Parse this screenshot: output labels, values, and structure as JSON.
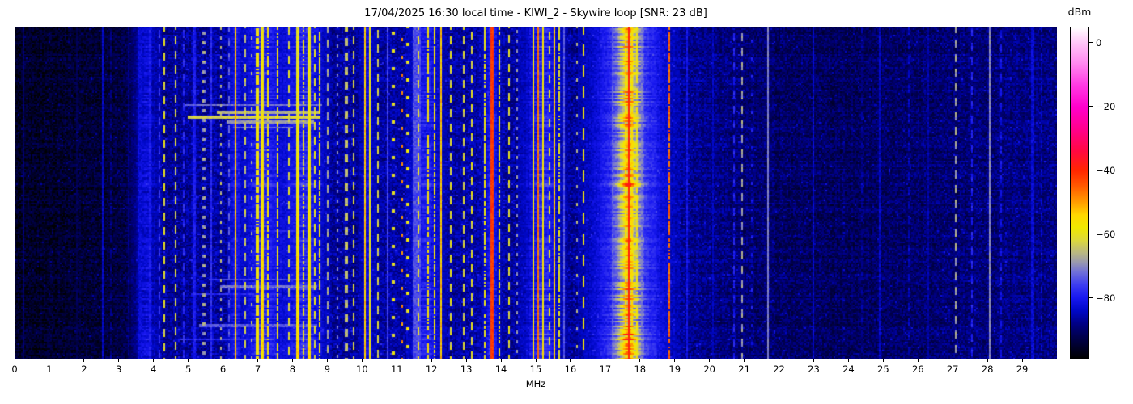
{
  "chart_data": {
    "type": "heatmap",
    "subtype": "radio-spectrum-waterfall",
    "title": "17/04/2025 16:30 local time - KIWI_2 - Skywire loop [SNR: 23 dB]",
    "xlabel": "MHz",
    "x_range": [
      0,
      30
    ],
    "x_ticks": [
      0,
      1,
      2,
      3,
      4,
      5,
      6,
      7,
      8,
      9,
      10,
      11,
      12,
      13,
      14,
      15,
      16,
      17,
      18,
      19,
      20,
      21,
      22,
      23,
      24,
      25,
      26,
      27,
      28,
      29
    ],
    "colorbar": {
      "label": "dBm",
      "range": [
        -99,
        5
      ],
      "ticks": [
        {
          "value": 0,
          "label": "0"
        },
        {
          "value": -20,
          "label": "−20"
        },
        {
          "value": -40,
          "label": "−40"
        },
        {
          "value": -60,
          "label": "−60"
        },
        {
          "value": -80,
          "label": "−80"
        }
      ],
      "colormap_stops": [
        [
          -99,
          "#000000"
        ],
        [
          -95,
          "#000030"
        ],
        [
          -92,
          "#000050"
        ],
        [
          -88,
          "#000088"
        ],
        [
          -84,
          "#0008c8"
        ],
        [
          -80,
          "#1818f0"
        ],
        [
          -76,
          "#3c3cf0"
        ],
        [
          -72,
          "#7070d8"
        ],
        [
          -69,
          "#9898b0"
        ],
        [
          -66,
          "#b8b684"
        ],
        [
          -62,
          "#dcd83c"
        ],
        [
          -58,
          "#f0e800"
        ],
        [
          -54,
          "#ffd700"
        ],
        [
          -50,
          "#ff9d00"
        ],
        [
          -45,
          "#ff5a00"
        ],
        [
          -40,
          "#ff2600"
        ],
        [
          -34,
          "#ff0840"
        ],
        [
          -27,
          "#ff008c"
        ],
        [
          -20,
          "#ff00cc"
        ],
        [
          -13,
          "#ff3ce4"
        ],
        [
          -6,
          "#ff8cf0"
        ],
        [
          0,
          "#ffc4f8"
        ],
        [
          5,
          "#ffffff"
        ]
      ]
    },
    "noise_floor_dbm": [
      [
        0,
        -96
      ],
      [
        1.2,
        -95
      ],
      [
        2.4,
        -94
      ],
      [
        3.2,
        -93
      ],
      [
        3.6,
        -89
      ],
      [
        4.2,
        -87.5
      ],
      [
        5,
        -87
      ],
      [
        6,
        -86
      ],
      [
        7,
        -85
      ],
      [
        8,
        -85
      ],
      [
        8.8,
        -86
      ],
      [
        9.5,
        -87
      ],
      [
        10.5,
        -86.5
      ],
      [
        11.5,
        -86
      ],
      [
        12.5,
        -86.5
      ],
      [
        13.5,
        -86
      ],
      [
        14.5,
        -86.5
      ],
      [
        15.5,
        -86
      ],
      [
        16.2,
        -87
      ],
      [
        16.7,
        -85
      ],
      [
        17.1,
        -83
      ],
      [
        17.67,
        -80.5
      ],
      [
        18.1,
        -82
      ],
      [
        18.55,
        -83.5
      ],
      [
        19,
        -86
      ],
      [
        19.6,
        -87.5
      ],
      [
        20.3,
        -88.5
      ],
      [
        21.2,
        -89.5
      ],
      [
        22,
        -90.5
      ],
      [
        23,
        -91
      ],
      [
        24,
        -91
      ],
      [
        25,
        -90.5
      ],
      [
        26,
        -90
      ],
      [
        27,
        -89.5
      ],
      [
        28,
        -89
      ],
      [
        29,
        -88.5
      ],
      [
        30,
        -88.5
      ]
    ],
    "glows": [
      {
        "freq": 17.67,
        "sigma": 0.2,
        "amp": 20
      },
      {
        "freq": 17.67,
        "sigma": 0.6,
        "amp": 8
      },
      {
        "freq": 15.2,
        "sigma": 0.28,
        "amp": 9
      },
      {
        "freq": 13.73,
        "sigma": 0.12,
        "amp": 8
      },
      {
        "freq": 8.35,
        "sigma": 0.3,
        "amp": 8
      },
      {
        "freq": 7.15,
        "sigma": 0.3,
        "amp": 8
      },
      {
        "freq": 3.78,
        "sigma": 0.2,
        "amp": 6
      },
      {
        "freq": 6.35,
        "sigma": 0.1,
        "amp": 6
      },
      {
        "freq": 10.15,
        "sigma": 0.12,
        "amp": 5
      },
      {
        "freq": 11.85,
        "sigma": 0.25,
        "amp": 7
      }
    ],
    "signals": [
      {
        "freq": 0.25,
        "width": 0.05,
        "level": -90,
        "style": "solid",
        "jitter": 4
      },
      {
        "freq": 1.8,
        "width": 0.05,
        "level": -92,
        "style": "solid",
        "jitter": 4
      },
      {
        "freq": 2.55,
        "width": 0.05,
        "level": -84,
        "style": "solid",
        "jitter": 4
      },
      {
        "freq": 2.78,
        "width": 0.05,
        "level": -88,
        "style": "dashed"
      },
      {
        "freq": 3.3,
        "width": 0.05,
        "level": -89,
        "style": "solid"
      },
      {
        "freq": 3.62,
        "width": 0.12,
        "level": -83,
        "style": "solid",
        "jitter": 5
      },
      {
        "freq": 3.9,
        "width": 0.06,
        "level": -80,
        "style": "solid",
        "jitter": 5
      },
      {
        "freq": 4.15,
        "width": 0.05,
        "level": -77,
        "style": "dashed"
      },
      {
        "freq": 4.33,
        "width": 0.05,
        "level": -61,
        "style": "dashed",
        "jitter": 6
      },
      {
        "freq": 4.65,
        "width": 0.05,
        "level": -63,
        "style": "dashed",
        "jitter": 6
      },
      {
        "freq": 4.88,
        "width": 0.05,
        "level": -78,
        "style": "dashed"
      },
      {
        "freq": 5.17,
        "width": 0.05,
        "level": -80,
        "style": "solid"
      },
      {
        "freq": 5.45,
        "width": 0.04,
        "level": -68,
        "style": "dotted",
        "jitter": 6
      },
      {
        "freq": 5.68,
        "width": 0.04,
        "level": -78,
        "style": "solid"
      },
      {
        "freq": 5.95,
        "width": 0.05,
        "level": -66,
        "style": "dotted",
        "jitter": 6
      },
      {
        "freq": 6.18,
        "width": 0.04,
        "level": -74,
        "style": "dashed"
      },
      {
        "freq": 6.35,
        "width": 0.06,
        "level": -52,
        "style": "solid",
        "jitter": 5
      },
      {
        "freq": 6.62,
        "width": 0.05,
        "level": -64,
        "style": "dashed",
        "jitter": 6
      },
      {
        "freq": 6.82,
        "width": 0.05,
        "level": -66,
        "style": "sparse",
        "jitter": 6
      },
      {
        "freq": 7.0,
        "width": 0.08,
        "level": -58,
        "style": "flicker",
        "p": 0.8,
        "jitter": 7
      },
      {
        "freq": 7.12,
        "width": 0.12,
        "level": -56,
        "style": "solid",
        "jitter": 7,
        "grad": [
          -3,
          1
        ]
      },
      {
        "freq": 7.28,
        "width": 0.06,
        "level": -58,
        "style": "flicker",
        "p": 0.75,
        "jitter": 7
      },
      {
        "freq": 7.56,
        "width": 0.06,
        "level": -58,
        "style": "flicker",
        "p": 0.8,
        "jitter": 7
      },
      {
        "freq": 7.9,
        "width": 0.06,
        "level": -62,
        "style": "dashed",
        "jitter": 7
      },
      {
        "freq": 8.17,
        "width": 0.1,
        "level": -56,
        "style": "solid",
        "jitter": 7,
        "grad": [
          -5,
          2
        ]
      },
      {
        "freq": 8.33,
        "width": 0.06,
        "level": -60,
        "style": "flicker",
        "p": 0.7,
        "jitter": 7
      },
      {
        "freq": 8.47,
        "width": 0.08,
        "level": -57,
        "style": "solid",
        "jitter": 7,
        "grad": [
          -3,
          2
        ]
      },
      {
        "freq": 8.62,
        "width": 0.05,
        "level": -61,
        "style": "dashed",
        "jitter": 6
      },
      {
        "freq": 8.78,
        "width": 0.07,
        "level": -58,
        "style": "flicker",
        "p": 0.75,
        "jitter": 7
      },
      {
        "freq": 9.02,
        "width": 0.05,
        "level": -67,
        "style": "dashed",
        "jitter": 6
      },
      {
        "freq": 9.3,
        "width": 0.04,
        "level": -71,
        "style": "dotted"
      },
      {
        "freq": 9.55,
        "width": 0.05,
        "level": -65,
        "style": "dashed",
        "jitter": 6
      },
      {
        "freq": 9.78,
        "width": 0.05,
        "level": -63,
        "style": "dashed",
        "jitter": 6
      },
      {
        "freq": 10.08,
        "width": 0.06,
        "level": -53,
        "style": "solid",
        "jitter": 5
      },
      {
        "freq": 10.22,
        "width": 0.05,
        "level": -59,
        "style": "solid",
        "jitter": 6
      },
      {
        "freq": 10.45,
        "width": 0.05,
        "level": -63,
        "style": "dashed",
        "jitter": 6
      },
      {
        "freq": 10.75,
        "width": 0.04,
        "level": -76,
        "style": "solid"
      },
      {
        "freq": 10.9,
        "width": 0.05,
        "level": -60,
        "style": "sparse",
        "jitter": 7
      },
      {
        "freq": 11.15,
        "width": 0.05,
        "level": -49,
        "style": "sparse",
        "jitter": 5
      },
      {
        "freq": 11.32,
        "width": 0.05,
        "level": -59,
        "style": "sparse",
        "jitter": 6
      },
      {
        "freq": 11.57,
        "width": 0.25,
        "level": -75,
        "style": "solid",
        "jitter": 5
      },
      {
        "freq": 11.62,
        "width": 0.05,
        "level": -61,
        "style": "dashed",
        "jitter": 6
      },
      {
        "freq": 11.9,
        "width": 0.06,
        "level": -57,
        "style": "flicker",
        "p": 0.8,
        "jitter": 7
      },
      {
        "freq": 12.08,
        "width": 0.06,
        "level": -57,
        "style": "flicker",
        "p": 0.8,
        "jitter": 7
      },
      {
        "freq": 12.27,
        "width": 0.06,
        "level": -53,
        "style": "solid",
        "jitter": 6
      },
      {
        "freq": 12.55,
        "width": 0.05,
        "level": -61,
        "style": "dashed",
        "jitter": 6
      },
      {
        "freq": 12.93,
        "width": 0.05,
        "level": -62,
        "style": "dashed",
        "jitter": 6
      },
      {
        "freq": 13.15,
        "width": 0.05,
        "level": -61,
        "style": "dashed",
        "jitter": 6
      },
      {
        "freq": 13.55,
        "width": 0.05,
        "level": -59,
        "style": "flicker",
        "p": 0.75,
        "jitter": 6
      },
      {
        "freq": 13.73,
        "width": 0.08,
        "level": -42,
        "style": "solid",
        "jitter": 4
      },
      {
        "freq": 13.97,
        "width": 0.05,
        "level": -59,
        "style": "flicker",
        "p": 0.7,
        "jitter": 6
      },
      {
        "freq": 14.22,
        "width": 0.05,
        "level": -61,
        "style": "dashed",
        "jitter": 6
      },
      {
        "freq": 14.45,
        "width": 0.04,
        "level": -69,
        "style": "dotted"
      },
      {
        "freq": 14.92,
        "width": 0.05,
        "level": -56,
        "style": "solid",
        "jitter": 6
      },
      {
        "freq": 15.08,
        "width": 0.07,
        "level": -47,
        "style": "solid",
        "jitter": 5
      },
      {
        "freq": 15.23,
        "width": 0.05,
        "level": -57,
        "style": "solid",
        "jitter": 6
      },
      {
        "freq": 15.38,
        "width": 0.05,
        "level": -61,
        "style": "dashed",
        "jitter": 6
      },
      {
        "freq": 15.55,
        "width": 0.06,
        "level": -53,
        "style": "solid",
        "jitter": 6
      },
      {
        "freq": 15.68,
        "width": 0.05,
        "level": -60,
        "style": "flicker",
        "p": 0.7,
        "jitter": 6
      },
      {
        "freq": 15.83,
        "width": 0.04,
        "level": -74,
        "style": "solid"
      },
      {
        "freq": 16.17,
        "width": 0.04,
        "level": -66,
        "style": "sparse",
        "jitter": 6
      },
      {
        "freq": 16.36,
        "width": 0.06,
        "level": -58,
        "style": "longdash",
        "jitter": 5
      },
      {
        "freq": 17.2,
        "width": 0.04,
        "level": -74,
        "style": "solid"
      },
      {
        "freq": 17.57,
        "width": 0.05,
        "level": -57,
        "style": "solid",
        "jitter": 6
      },
      {
        "freq": 17.67,
        "width": 0.07,
        "level": -39,
        "style": "solid",
        "jitter": 3
      },
      {
        "freq": 17.78,
        "width": 0.05,
        "level": -56,
        "style": "solid",
        "jitter": 6
      },
      {
        "freq": 17.9,
        "width": 0.05,
        "level": -59,
        "style": "flicker",
        "p": 0.75,
        "jitter": 7
      },
      {
        "freq": 18.05,
        "width": 0.04,
        "level": -72,
        "style": "solid",
        "jitter": 5
      },
      {
        "freq": 18.84,
        "width": 0.04,
        "level": -46,
        "style": "flicker",
        "p": 0.85,
        "jitter": 7
      },
      {
        "freq": 19.35,
        "width": 0.04,
        "level": -81,
        "style": "solid"
      },
      {
        "freq": 20.12,
        "width": 0.04,
        "level": -85,
        "style": "solid"
      },
      {
        "freq": 20.7,
        "width": 0.05,
        "level": -79,
        "style": "dashed"
      },
      {
        "freq": 20.95,
        "width": 0.05,
        "level": -68,
        "style": "dashed",
        "jitter": 5
      },
      {
        "freq": 21.2,
        "width": 0.04,
        "level": -80,
        "style": "sparse"
      },
      {
        "freq": 21.7,
        "width": 0.03,
        "level": -71,
        "style": "solid",
        "jitter": 3
      },
      {
        "freq": 23.0,
        "width": 0.04,
        "level": -84,
        "style": "solid"
      },
      {
        "freq": 24.4,
        "width": 0.04,
        "level": -87,
        "style": "dashed"
      },
      {
        "freq": 24.9,
        "width": 0.04,
        "level": -84,
        "style": "solid"
      },
      {
        "freq": 25.75,
        "width": 0.04,
        "level": -84,
        "style": "dashed"
      },
      {
        "freq": 26.3,
        "width": 0.04,
        "level": -86,
        "style": "solid"
      },
      {
        "freq": 27.1,
        "width": 0.05,
        "level": -68,
        "style": "dashed",
        "jitter": 5
      },
      {
        "freq": 27.55,
        "width": 0.04,
        "level": -79,
        "style": "dashed"
      },
      {
        "freq": 28.05,
        "width": 0.04,
        "level": -70,
        "style": "solid",
        "jitter": 4
      },
      {
        "freq": 28.4,
        "width": 0.04,
        "level": -81,
        "style": "dashed"
      },
      {
        "freq": 29.3,
        "width": 0.05,
        "level": -83,
        "style": "solid"
      },
      {
        "freq": 29.55,
        "width": 0.04,
        "level": -84,
        "style": "dashed"
      }
    ],
    "bursts": [
      {
        "row": 0.235,
        "f0": 4.9,
        "f1": 8.85,
        "level": -72,
        "h": 1
      },
      {
        "row": 0.25,
        "f0": 5.8,
        "f1": 8.8,
        "level": -66,
        "h": 2
      },
      {
        "row": 0.265,
        "f0": 5.0,
        "f1": 8.8,
        "level": -63,
        "h": 2
      },
      {
        "row": 0.283,
        "f0": 6.1,
        "f1": 8.6,
        "level": -68,
        "h": 2
      },
      {
        "row": 0.3,
        "f0": 6.3,
        "f1": 8.0,
        "level": -73,
        "h": 1
      },
      {
        "row": 0.61,
        "f0": 6.8,
        "f1": 8.4,
        "level": -78,
        "h": 1
      },
      {
        "row": 0.755,
        "f0": 5.6,
        "f1": 8.75,
        "level": -76,
        "h": 1
      },
      {
        "row": 0.775,
        "f0": 5.9,
        "f1": 8.7,
        "level": -72,
        "h": 2
      },
      {
        "row": 0.8,
        "f0": 5.1,
        "f1": 7.7,
        "level": -78,
        "h": 1
      },
      {
        "row": 0.895,
        "f0": 5.3,
        "f1": 8.7,
        "level": -74,
        "h": 2
      },
      {
        "row": 0.935,
        "f0": 4.7,
        "f1": 7.3,
        "level": -78,
        "h": 1
      }
    ]
  }
}
